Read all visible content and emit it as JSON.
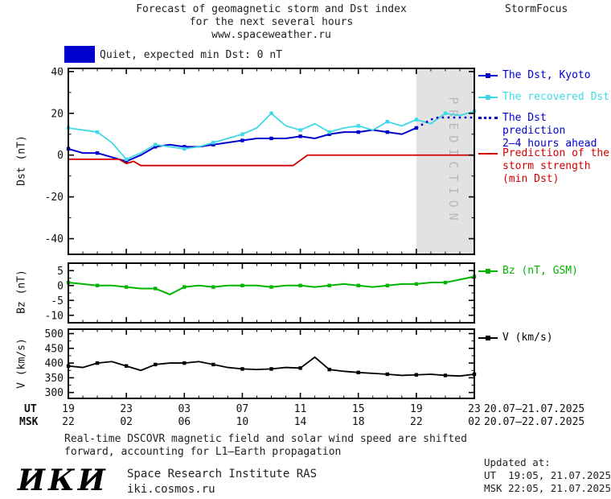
{
  "header": {
    "title_line1": "Forecast of geomagnetic storm and Dst index",
    "title_line2": "for the next several hours",
    "title_line3": "www.spaceweather.ru",
    "brand": "StormFocus"
  },
  "status": {
    "label": "Quiet, expected min Dst: 0 nT",
    "swatch_color": "#0000cc"
  },
  "legends": {
    "dst": [
      {
        "label": "The Dst, Kyoto",
        "color": "#0000cc"
      },
      {
        "label": "The recovered Dst",
        "color": "#3fd9e6"
      },
      {
        "lines": [
          "The Dst prediction",
          "2–4 hours ahead"
        ],
        "color": "#0000cc"
      },
      {
        "lines": [
          "Prediction of the",
          "storm strength",
          "(min Dst)"
        ],
        "color": "#d40000"
      }
    ],
    "bz": {
      "label": "Bz (nT, GSM)",
      "color": "#00b400"
    },
    "v": {
      "label": "V (km/s)",
      "color": "#000000"
    }
  },
  "axis": {
    "row1_label": "UT",
    "row2_label": "MSK",
    "tick_hours": [
      0,
      4,
      8,
      12,
      16,
      20,
      24,
      28
    ],
    "ut_labels": [
      "19",
      "23",
      "03",
      "07",
      "11",
      "15",
      "19",
      "23"
    ],
    "msk_labels": [
      "22",
      "02",
      "06",
      "10",
      "14",
      "18",
      "22",
      "02"
    ],
    "date_range_row1": "20.07–21.07.2025",
    "date_range_row2": "20.07–22.07.2025"
  },
  "footer": {
    "note_line1": "Real-time DSCOVR magnetic field and solar wind speed are shifted",
    "note_line2": "forward, accounting for L1–Earth propagation",
    "updated_label": "Updated at:",
    "updated_ut": "UT  19:05, 21.07.2025",
    "updated_msk": "MSK 22:05, 21.07.2025",
    "logo": "ИКИ",
    "institute": "Space Research Institute RAS",
    "site": "iki.cosmos.ru"
  },
  "chart_data": [
    {
      "id": "dst",
      "type": "line",
      "ylabel": "Dst (nT)",
      "ylim": [
        -47.5,
        41.5
      ],
      "yticks": [
        40,
        20,
        0,
        -20,
        -40
      ],
      "ytick_minor_step": 10,
      "xlim": [
        0,
        28
      ],
      "xtick_major_step": 4,
      "xtick_minor_step": 1,
      "x_axis_note": "hours since 19:00 UT 20.07.2025",
      "prediction_band": {
        "x0": 24,
        "x1": 28,
        "label": "PREDICTION",
        "fill": "#e2e2e2",
        "text_color": "#b8b8b8"
      },
      "series": [
        {
          "name": "The Dst, Kyoto",
          "color": "#0000cc",
          "style": "solid",
          "width": 2,
          "markers": true,
          "marker_every": 2,
          "x": [
            0,
            1,
            2,
            3,
            4,
            5,
            6,
            7,
            8,
            9,
            10,
            11,
            12,
            13,
            14,
            15,
            16,
            17,
            18,
            19,
            20,
            21,
            22,
            23,
            24
          ],
          "y": [
            3,
            1,
            1,
            -1,
            -3,
            0,
            4,
            5,
            4,
            4,
            5,
            6,
            7,
            8,
            8,
            8,
            9,
            8,
            10,
            11,
            11,
            12,
            11,
            10,
            13
          ]
        },
        {
          "name": "The recovered Dst",
          "color": "#3fd9e6",
          "style": "solid",
          "width": 1.8,
          "markers": true,
          "marker_every": 2,
          "x": [
            0,
            1,
            2,
            3,
            4,
            5,
            6,
            7,
            8,
            9,
            10,
            11,
            12,
            13,
            14,
            15,
            16,
            17,
            18,
            19,
            20,
            21,
            22,
            23,
            24,
            25,
            26,
            27,
            28
          ],
          "y": [
            13,
            12,
            11,
            6,
            -2,
            1,
            5,
            4,
            3,
            4,
            6,
            8,
            10,
            13,
            20,
            14,
            12,
            15,
            11,
            13,
            14,
            12,
            16,
            14,
            17,
            15,
            20,
            19,
            21
          ]
        },
        {
          "name": "The Dst prediction 2–4 hours ahead",
          "color": "#0000cc",
          "style": "dotted",
          "width": 2.5,
          "markers": false,
          "x": [
            24,
            24.5,
            25,
            25.5,
            26.5,
            28
          ],
          "y": [
            13,
            15,
            17,
            18,
            18,
            18
          ]
        },
        {
          "name": "Prediction of the storm strength (min Dst)",
          "color": "#d40000",
          "style": "solid",
          "width": 1.8,
          "markers": false,
          "x": [
            0,
            3.5,
            4,
            4.5,
            5,
            15.5,
            16.5,
            28
          ],
          "y": [
            -2,
            -2,
            -4,
            -3,
            -5,
            -5,
            0,
            0
          ]
        }
      ]
    },
    {
      "id": "bz",
      "type": "line",
      "ylabel": "Bz (nT)",
      "ylim": [
        -12.5,
        7.5
      ],
      "yticks": [
        5,
        0,
        -5,
        -10
      ],
      "ytick_minor_step": 2.5,
      "xlim": [
        0,
        28
      ],
      "xtick_major_step": 4,
      "xtick_minor_step": 1,
      "series": [
        {
          "name": "Bz (nT, GSM)",
          "color": "#00b400",
          "style": "solid",
          "width": 2,
          "markers": true,
          "marker_every": 2,
          "x": [
            0,
            1,
            2,
            3,
            4,
            5,
            6,
            7,
            8,
            9,
            10,
            11,
            12,
            13,
            14,
            15,
            16,
            17,
            18,
            19,
            20,
            21,
            22,
            23,
            24,
            25,
            26,
            27,
            28
          ],
          "y": [
            1,
            0.5,
            0,
            0,
            -0.5,
            -1,
            -1,
            -3,
            -0.5,
            0,
            -0.5,
            0,
            0,
            0,
            -0.5,
            0,
            0,
            -0.5,
            0,
            0.5,
            0,
            -0.5,
            0,
            0.5,
            0.5,
            1,
            1,
            2,
            3
          ]
        }
      ]
    },
    {
      "id": "v",
      "type": "line",
      "ylabel": "V (km/s)",
      "ylim": [
        280,
        515
      ],
      "yticks": [
        500,
        450,
        400,
        350,
        300
      ],
      "ytick_minor_step": 25,
      "xlim": [
        0,
        28
      ],
      "xtick_major_step": 4,
      "xtick_minor_step": 1,
      "series": [
        {
          "name": "V (km/s)",
          "color": "#000000",
          "style": "solid",
          "width": 1.8,
          "markers": true,
          "marker_every": 2,
          "x": [
            0,
            1,
            2,
            3,
            4,
            5,
            6,
            7,
            8,
            9,
            10,
            11,
            12,
            13,
            14,
            15,
            16,
            17,
            18,
            19,
            20,
            21,
            22,
            23,
            24,
            25,
            26,
            27,
            28
          ],
          "y": [
            390,
            385,
            400,
            405,
            390,
            375,
            395,
            400,
            400,
            405,
            395,
            385,
            380,
            378,
            380,
            385,
            383,
            420,
            378,
            372,
            368,
            365,
            362,
            358,
            360,
            362,
            358,
            356,
            362
          ]
        }
      ]
    }
  ]
}
